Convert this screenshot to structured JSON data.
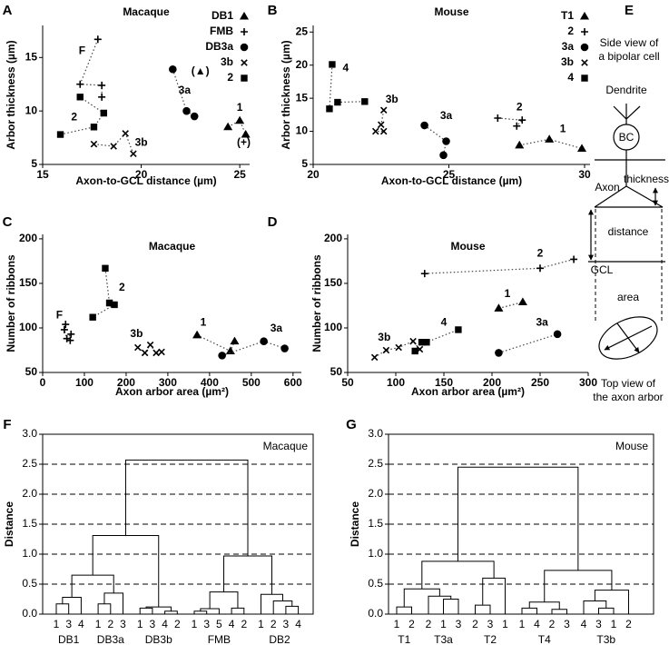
{
  "chart_data": [
    {
      "panel": "A",
      "type": "scatter",
      "title": "Macaque",
      "xlabel": "Axon-to-GCL distance (µm)",
      "ylabel": "Arbor thickness (µm)",
      "xlim": [
        15,
        25.5
      ],
      "ylim": [
        5,
        18
      ],
      "xticks": [
        15,
        20,
        25
      ],
      "yticks": [
        5,
        10,
        15
      ],
      "legend": "upper right",
      "series": [
        {
          "name": "DB1",
          "marker": "triangle",
          "x": [
            24.4,
            25.0,
            25.3
          ],
          "values": [
            8.5,
            9.1,
            7.8
          ]
        },
        {
          "name": "FMB",
          "marker": "plus",
          "x": [
            17.8,
            16.9,
            18.0,
            18.0
          ],
          "values": [
            16.7,
            12.5,
            12.4,
            11.3
          ]
        },
        {
          "name": "DB3a",
          "marker": "circle",
          "x": [
            21.6,
            22.3,
            22.7
          ],
          "values": [
            13.9,
            10.0,
            9.5
          ]
        },
        {
          "name": "3b",
          "marker": "x",
          "x": [
            17.6,
            18.6,
            19.2,
            19.6
          ],
          "values": [
            6.9,
            6.7,
            7.9,
            6.0
          ]
        },
        {
          "name": "2",
          "marker": "square",
          "x": [
            15.9,
            17.6,
            18.1,
            16.9
          ],
          "values": [
            7.8,
            8.5,
            9.8,
            11.3
          ]
        }
      ],
      "annotations": [
        {
          "text": "1",
          "x": 25.0,
          "y": 10.3
        },
        {
          "text": "F",
          "x": 17.0,
          "y": 15.6
        },
        {
          "text": "3a",
          "x": 22.2,
          "y": 11.9
        },
        {
          "text": "3b",
          "x": 20.0,
          "y": 7.0
        },
        {
          "text": "2",
          "x": 16.6,
          "y": 9.4
        },
        {
          "text": "(▲)",
          "x": 23.0,
          "y": 13.7
        },
        {
          "text": "(+)",
          "x": 25.2,
          "y": 7.0
        }
      ]
    },
    {
      "panel": "B",
      "type": "scatter",
      "title": "Mouse",
      "xlabel": "Axon-to-GCL distance (µm)",
      "ylabel": "Arbor thickness (µm)",
      "xlim": [
        20,
        30.2
      ],
      "ylim": [
        5,
        26
      ],
      "xticks": [
        20,
        25,
        30
      ],
      "yticks": [
        5,
        10,
        15,
        20,
        25
      ],
      "legend": "upper right",
      "series": [
        {
          "name": "T1",
          "marker": "triangle",
          "x": [
            27.6,
            28.7,
            29.9
          ],
          "values": [
            7.9,
            8.8,
            7.4
          ]
        },
        {
          "name": "2",
          "marker": "plus",
          "x": [
            26.8,
            27.7,
            27.5
          ],
          "values": [
            12.0,
            11.7,
            10.8
          ]
        },
        {
          "name": "3a",
          "marker": "circle",
          "x": [
            24.1,
            24.9,
            24.8
          ],
          "values": [
            10.9,
            8.5,
            6.4
          ]
        },
        {
          "name": "3b",
          "marker": "x",
          "x": [
            22.6,
            22.5,
            22.3,
            22.6
          ],
          "values": [
            13.2,
            11.0,
            10.0,
            10.0
          ]
        },
        {
          "name": "4",
          "marker": "square",
          "x": [
            20.7,
            20.6,
            20.9,
            21.9
          ],
          "values": [
            20.1,
            13.4,
            14.4,
            14.5
          ]
        }
      ],
      "annotations": [
        {
          "text": "4",
          "x": 21.2,
          "y": 19.5
        },
        {
          "text": "3b",
          "x": 22.9,
          "y": 14.8
        },
        {
          "text": "3a",
          "x": 24.9,
          "y": 12.3
        },
        {
          "text": "2",
          "x": 27.6,
          "y": 13.6
        },
        {
          "text": "1",
          "x": 29.2,
          "y": 10.3
        }
      ]
    },
    {
      "panel": "C",
      "type": "scatter",
      "title": "Macaque",
      "xlabel": "Axon arbor area (µm²)",
      "ylabel": "Number of ribbons",
      "xlim": [
        0,
        620
      ],
      "ylim": [
        50,
        205
      ],
      "xticks": [
        0,
        100,
        200,
        300,
        400,
        500,
        600
      ],
      "yticks": [
        50,
        100,
        150,
        200
      ],
      "series": [
        {
          "marker": "plus",
          "x": [
            55,
            52,
            58,
            68,
            66
          ],
          "values": [
            104,
            98,
            88,
            93,
            86
          ]
        },
        {
          "marker": "square",
          "x": [
            150,
            160,
            172,
            120
          ],
          "values": [
            167,
            128,
            126,
            112
          ]
        },
        {
          "marker": "x",
          "x": [
            228,
            245,
            258,
            272,
            285
          ],
          "values": [
            78,
            72,
            81,
            72,
            73
          ]
        },
        {
          "marker": "triangle",
          "x": [
            370,
            450,
            460
          ],
          "values": [
            92,
            74,
            85
          ]
        },
        {
          "marker": "circle",
          "x": [
            430,
            530,
            580
          ],
          "values": [
            69,
            85,
            77
          ]
        }
      ],
      "annotations": [
        {
          "text": "F",
          "x": 40,
          "y": 114
        },
        {
          "text": "2",
          "x": 190,
          "y": 145
        },
        {
          "text": "3b",
          "x": 225,
          "y": 93
        },
        {
          "text": "1",
          "x": 385,
          "y": 106
        },
        {
          "text": "3a",
          "x": 560,
          "y": 99
        }
      ]
    },
    {
      "panel": "D",
      "type": "scatter",
      "title": "Mouse",
      "xlabel": "Axon arbor area (µm²)",
      "ylabel": "Number of ribbons",
      "xlim": [
        50,
        300
      ],
      "ylim": [
        50,
        205
      ],
      "xticks": [
        50,
        100,
        150,
        200,
        250,
        300
      ],
      "yticks": [
        50,
        100,
        150,
        200
      ],
      "series": [
        {
          "marker": "plus",
          "x": [
            130,
            250,
            285
          ],
          "values": [
            161,
            167,
            177
          ]
        },
        {
          "marker": "triangle",
          "x": [
            207,
            232
          ],
          "values": [
            122,
            129
          ]
        },
        {
          "marker": "circle",
          "x": [
            207,
            268
          ],
          "values": [
            72,
            93
          ]
        },
        {
          "marker": "square",
          "x": [
            120,
            127,
            132,
            165
          ],
          "values": [
            74,
            84,
            84,
            98
          ]
        },
        {
          "marker": "x",
          "x": [
            78,
            90,
            103,
            118,
            125
          ],
          "values": [
            67,
            75,
            78,
            85,
            76
          ]
        }
      ],
      "annotations": [
        {
          "text": "2",
          "x": 250,
          "y": 183
        },
        {
          "text": "1",
          "x": 216,
          "y": 138
        },
        {
          "text": "3a",
          "x": 252,
          "y": 106
        },
        {
          "text": "4",
          "x": 150,
          "y": 106
        },
        {
          "text": "3b",
          "x": 88,
          "y": 89
        }
      ]
    },
    {
      "panel": "F",
      "type": "dendrogram",
      "title": "Macaque",
      "ylabel": "Distance",
      "ylim": [
        0,
        3
      ],
      "grid": true,
      "yticks": [
        {
          "value": 0,
          "label": "0.0"
        },
        0.5,
        {
          "value": 1,
          "label": "1.0"
        },
        1.5,
        {
          "value": 2,
          "label": "2.0"
        },
        2.5,
        {
          "value": 3,
          "label": "3.0"
        }
      ],
      "groups": [
        {
          "name": "DB1",
          "leaves": [
            "1",
            "3",
            "4"
          ]
        },
        {
          "name": "DB3a",
          "leaves": [
            "1",
            "2",
            "3"
          ]
        },
        {
          "name": "DB3b",
          "leaves": [
            "1",
            "3",
            "4",
            "2"
          ]
        },
        {
          "name": "FMB",
          "leaves": [
            "1",
            "3",
            "5",
            "4",
            "2"
          ]
        },
        {
          "name": "DB2",
          "leaves": [
            "1",
            "2",
            "3",
            "4"
          ]
        }
      ],
      "merges": [
        [
          0,
          1,
          0.17
        ],
        [
          19,
          2,
          0.28
        ],
        [
          3,
          4,
          0.17
        ],
        [
          21,
          5,
          0.35
        ],
        [
          20,
          22,
          0.65
        ],
        [
          6,
          7,
          0.1
        ],
        [
          8,
          9,
          0.05
        ],
        [
          24,
          25,
          0.12
        ],
        [
          23,
          26,
          1.31
        ],
        [
          10,
          11,
          0.05
        ],
        [
          28,
          12,
          0.09
        ],
        [
          13,
          14,
          0.1
        ],
        [
          29,
          30,
          0.37
        ],
        [
          17,
          18,
          0.13
        ],
        [
          16,
          32,
          0.22
        ],
        [
          15,
          33,
          0.33
        ],
        [
          31,
          34,
          0.97
        ],
        [
          27,
          35,
          2.57
        ]
      ]
    },
    {
      "panel": "G",
      "type": "dendrogram",
      "title": "Mouse",
      "ylabel": "Distance",
      "ylim": [
        0,
        3
      ],
      "grid": true,
      "yticks": [
        {
          "value": 0,
          "label": "0.0"
        },
        0.5,
        {
          "value": 1,
          "label": "1.0"
        },
        1.5,
        {
          "value": 2,
          "label": "2.0"
        },
        2.5,
        {
          "value": 3,
          "label": "3.0"
        }
      ],
      "groups": [
        {
          "name": "T1",
          "leaves": [
            "1",
            "2"
          ]
        },
        {
          "name": "T3a",
          "leaves": [
            "2",
            "1",
            "3"
          ]
        },
        {
          "name": "T2",
          "leaves": [
            "2",
            "3",
            "1"
          ]
        },
        {
          "name": "T4",
          "leaves": [
            "1",
            "4",
            "2",
            "3"
          ]
        },
        {
          "name": "T3b",
          "leaves": [
            "4",
            "3",
            "1",
            "2"
          ]
        }
      ],
      "merges": [
        [
          0,
          1,
          0.12
        ],
        [
          3,
          4,
          0.25
        ],
        [
          2,
          17,
          0.3
        ],
        [
          16,
          18,
          0.42
        ],
        [
          5,
          6,
          0.15
        ],
        [
          20,
          7,
          0.6
        ],
        [
          19,
          21,
          0.88
        ],
        [
          8,
          9,
          0.1
        ],
        [
          10,
          11,
          0.08
        ],
        [
          23,
          24,
          0.2
        ],
        [
          13,
          14,
          0.1
        ],
        [
          12,
          26,
          0.22
        ],
        [
          27,
          15,
          0.4
        ],
        [
          25,
          28,
          0.73
        ],
        [
          22,
          29,
          2.45
        ]
      ]
    }
  ],
  "diagram": {
    "panel": "E",
    "title_lines": [
      "Side view of",
      "a bipolar cell"
    ],
    "dendrite": "Dendrite",
    "cell": "BC",
    "axon": "Axon",
    "thickness": "thickness",
    "distance": "distance",
    "gcl": "GCL",
    "area": "area",
    "caption_lines": [
      "Top view of",
      "the axon arbor"
    ]
  }
}
